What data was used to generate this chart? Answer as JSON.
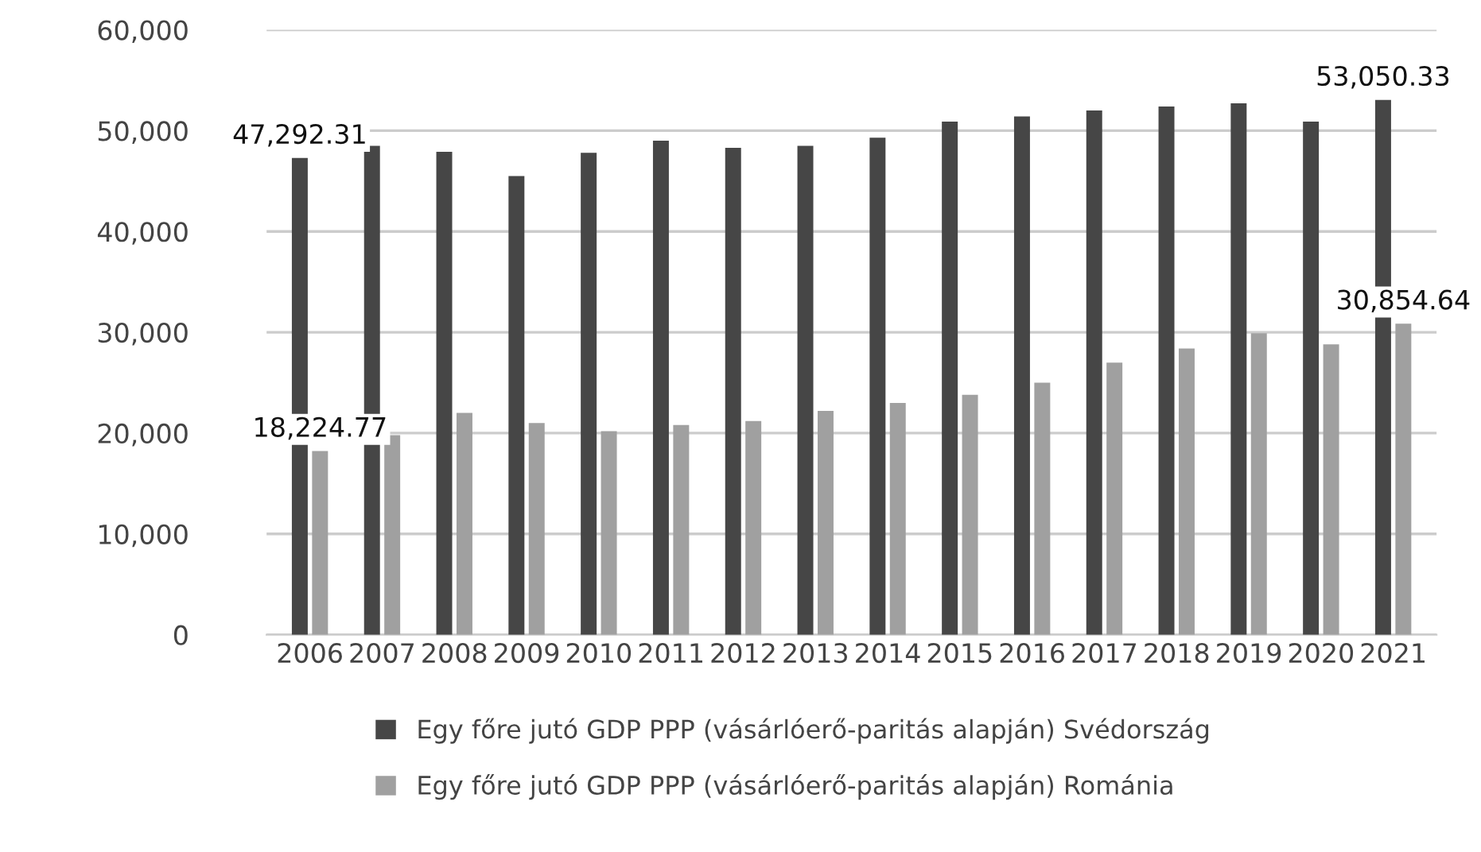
{
  "chart_data": {
    "type": "bar",
    "categories": [
      "2006",
      "2007",
      "2008",
      "2009",
      "2010",
      "2011",
      "2012",
      "2013",
      "2014",
      "2015",
      "2016",
      "2017",
      "2018",
      "2019",
      "2020",
      "2021"
    ],
    "series": [
      {
        "name": "Egy főre jutó GDP PPP (vásárlóerő-paritás alapján) Svédország",
        "color": "#464646",
        "values": [
          47292.31,
          48500,
          47900,
          45500,
          47800,
          49000,
          48300,
          48500,
          49300,
          50900,
          51400,
          52000,
          52400,
          52700,
          50900,
          53050.33
        ],
        "value_labels": [
          "47,292.31",
          null,
          null,
          null,
          null,
          null,
          null,
          null,
          null,
          null,
          null,
          null,
          null,
          null,
          null,
          "53,050.33"
        ]
      },
      {
        "name": "Egy főre jutó GDP PPP (vásárlóerő-paritás alapján) Románia",
        "color": "#a0a0a0",
        "values": [
          18224.77,
          19800,
          22000,
          21000,
          20200,
          20800,
          21200,
          22200,
          23000,
          23800,
          25000,
          27000,
          28400,
          29900,
          28800,
          30854.64
        ],
        "value_labels": [
          "18,224.77",
          null,
          null,
          null,
          null,
          null,
          null,
          null,
          null,
          null,
          null,
          null,
          null,
          null,
          null,
          "30,854.64"
        ]
      }
    ],
    "ylim": [
      0,
      60000
    ],
    "yticks": [
      {
        "value": 0,
        "label": "0"
      },
      {
        "value": 10000,
        "label": "10,000"
      },
      {
        "value": 20000,
        "label": "20,000"
      },
      {
        "value": 30000,
        "label": "30,000"
      },
      {
        "value": 40000,
        "label": "40,000"
      },
      {
        "value": 50000,
        "label": "50,000"
      },
      {
        "value": 60000,
        "label": "60,000"
      }
    ],
    "grid": "y",
    "legend": "bottom"
  }
}
